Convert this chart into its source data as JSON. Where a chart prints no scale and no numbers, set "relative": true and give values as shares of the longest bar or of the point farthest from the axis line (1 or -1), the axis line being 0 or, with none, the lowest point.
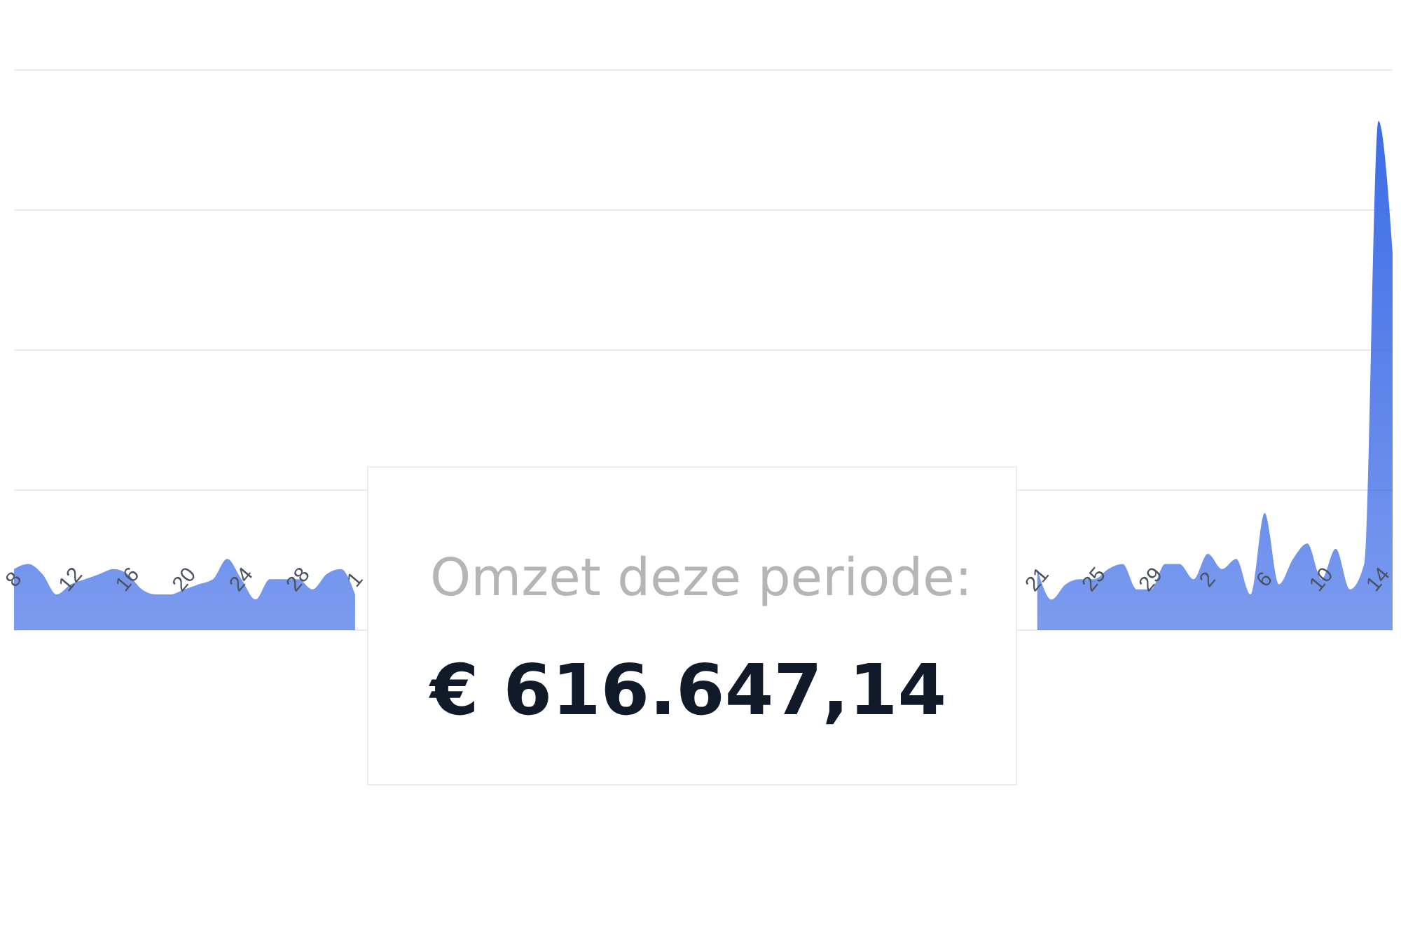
{
  "chart_data": {
    "type": "area",
    "relative": true,
    "color": "#3d6ce6",
    "grid": "y",
    "categories": [
      "8",
      null,
      null,
      null,
      "12",
      null,
      null,
      null,
      "16",
      null,
      null,
      null,
      "20",
      null,
      null,
      null,
      "24",
      null,
      null,
      null,
      "28",
      null,
      null,
      null,
      "1",
      null,
      null,
      null,
      null,
      null,
      null,
      null,
      null,
      null,
      null,
      null,
      null,
      null,
      null,
      null,
      null,
      null,
      null,
      null,
      null,
      null,
      null,
      null,
      null,
      null,
      null,
      null,
      null,
      null,
      null,
      null,
      null,
      null,
      null,
      null,
      null,
      null,
      null,
      null,
      null,
      null,
      null,
      null,
      null,
      null,
      null,
      null,
      "21",
      null,
      null,
      null,
      "25",
      null,
      null,
      null,
      "29",
      null,
      null,
      null,
      "2",
      null,
      null,
      null,
      "6",
      null,
      null,
      null,
      "10",
      null,
      null,
      null,
      "14",
      null
    ],
    "values": [
      0.12,
      0.13,
      0.11,
      0.07,
      0.09,
      0.1,
      0.11,
      0.12,
      0.11,
      0.08,
      0.07,
      0.07,
      0.08,
      0.09,
      0.1,
      0.14,
      0.1,
      0.06,
      0.1,
      0.1,
      0.1,
      0.08,
      0.11,
      0.12,
      0.07,
      null,
      null,
      null,
      null,
      null,
      null,
      null,
      null,
      null,
      null,
      null,
      null,
      null,
      null,
      null,
      null,
      null,
      null,
      null,
      null,
      null,
      null,
      null,
      null,
      null,
      null,
      null,
      null,
      null,
      null,
      null,
      null,
      null,
      null,
      null,
      null,
      null,
      null,
      null,
      null,
      null,
      null,
      null,
      null,
      null,
      null,
      null,
      0.12,
      0.06,
      0.09,
      0.1,
      0.1,
      0.12,
      0.13,
      0.08,
      0.08,
      0.13,
      0.13,
      0.1,
      0.15,
      0.12,
      0.14,
      0.07,
      0.23,
      0.09,
      0.14,
      0.17,
      0.1,
      0.16,
      0.08,
      0.13,
      1,
      0.74
    ],
    "annotations": [
      "Omzet deze periode:",
      "€ 616.647,14"
    ]
  }
}
